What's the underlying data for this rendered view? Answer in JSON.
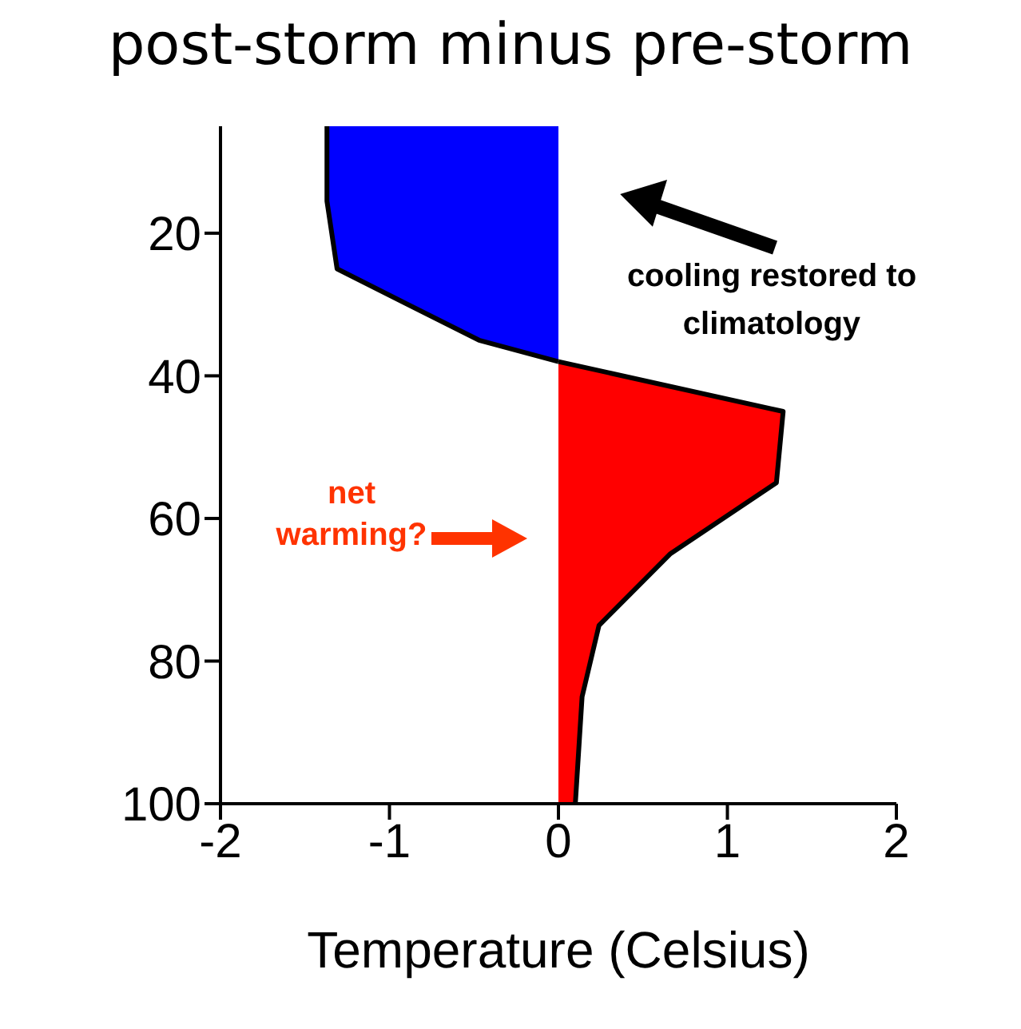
{
  "chart_data": {
    "type": "area",
    "orientation": "horizontal",
    "title": "post-storm minus pre-storm",
    "xlabel": "Temperature (Celsius)",
    "x": [
      5,
      15.5,
      25,
      35,
      38,
      45,
      55,
      65,
      75,
      85,
      100
    ],
    "series": [
      {
        "color": "#0000ff",
        "values": [
          -1.37,
          -1.37,
          -1.31,
          -0.47,
          0,
          null,
          null,
          null,
          null,
          null,
          null
        ]
      },
      {
        "color": "#ff0000",
        "values": [
          null,
          null,
          null,
          null,
          0,
          1.33,
          1.29,
          0.66,
          0.24,
          0.14,
          0.1
        ]
      }
    ],
    "xlim": [
      -2,
      2
    ],
    "xticks": [
      -2,
      -1,
      0,
      1,
      2
    ],
    "ylim": [
      100,
      5
    ],
    "yticks": [
      20,
      40,
      60,
      80,
      100
    ],
    "grid": false,
    "legend": false,
    "annotations": [
      "cooling restored to climatology",
      "net warming?"
    ]
  }
}
